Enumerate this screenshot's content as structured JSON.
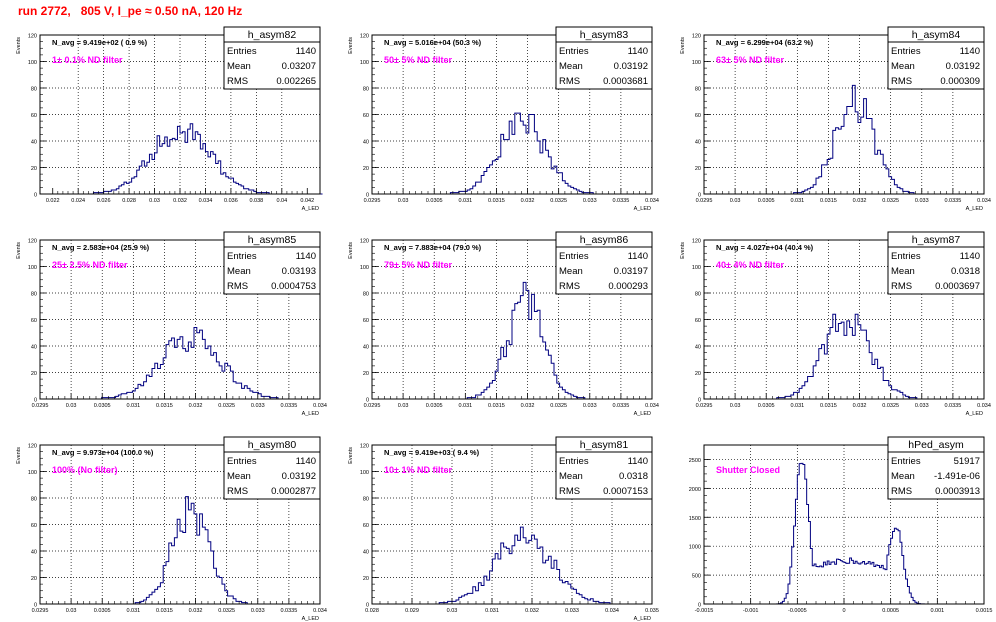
{
  "page": {
    "title": "run 2772,   805 V, I_pe ≈ 0.50 nA, 120 Hz"
  },
  "colors": {
    "histogram": "#000080",
    "annotation": "#ff00ff",
    "title": "#ff0000",
    "grid": "#000000",
    "text": "#000000"
  },
  "chart_data": [
    {
      "type": "histogram",
      "stats": {
        "name": "h_asym82",
        "entries": "1140",
        "mean": "0.03207",
        "rms": "0.002265"
      },
      "n_avg_text": "N_avg = 9.419e+02 ( 0.9 %)",
      "filter_text": "1± 0.1% ND filter",
      "ylabel": "Events",
      "xlabel": "A_LED",
      "xlim": [
        0.021,
        0.043
      ],
      "ylim": [
        0,
        120
      ],
      "yticks": [
        "0",
        "20",
        "40",
        "60",
        "80",
        "100",
        "120"
      ],
      "xticks": [
        "0.022",
        "0.024",
        "0.026",
        "0.028",
        "0.03",
        "0.032",
        "0.034",
        "0.036",
        "0.038",
        "0.04",
        "0.042"
      ],
      "xtick_values": [
        0.022,
        0.024,
        0.026,
        0.028,
        0.03,
        0.032,
        0.034,
        0.036,
        0.038,
        0.04,
        0.042
      ],
      "profile": {
        "mu": 0.03207,
        "sigma": 0.002265,
        "peak": 50,
        "bin_width": 0.0002
      }
    },
    {
      "type": "histogram",
      "stats": {
        "name": "h_asym83",
        "entries": "1140",
        "mean": "0.03192",
        "rms": "0.0003681"
      },
      "n_avg_text": "N_avg = 5.016e+04 (50.3 %)",
      "filter_text": "50± 5% ND filter",
      "ylabel": "Events",
      "xlabel": "A_LED",
      "xlim": [
        0.0295,
        0.034
      ],
      "ylim": [
        0,
        120
      ],
      "yticks": [
        "0",
        "20",
        "40",
        "60",
        "80",
        "100",
        "120"
      ],
      "xticks": [
        "0.0295",
        "0.03",
        "0.0305",
        "0.031",
        "0.0315",
        "0.032",
        "0.0325",
        "0.033",
        "0.0335",
        "0.034"
      ],
      "xtick_values": [
        0.0295,
        0.03,
        0.0305,
        0.031,
        0.0315,
        0.032,
        0.0325,
        0.033,
        0.0335,
        0.034
      ],
      "profile": {
        "mu": 0.03192,
        "sigma": 0.0003681,
        "peak": 55,
        "bin_width": 4.5e-05
      }
    },
    {
      "type": "histogram",
      "stats": {
        "name": "h_asym84",
        "entries": "1140",
        "mean": "0.03192",
        "rms": "0.000309"
      },
      "n_avg_text": "N_avg = 6.299e+04 (63.2 %)",
      "filter_text": "63± 5% ND filter",
      "ylabel": "Events",
      "xlabel": "A_LED",
      "xlim": [
        0.0295,
        0.034
      ],
      "ylim": [
        0,
        120
      ],
      "yticks": [
        "0",
        "20",
        "40",
        "60",
        "80",
        "100",
        "120"
      ],
      "xticks": [
        "0.0295",
        "0.03",
        "0.0305",
        "0.031",
        "0.0315",
        "0.032",
        "0.0325",
        "0.033",
        "0.0335",
        "0.034"
      ],
      "xtick_values": [
        0.0295,
        0.03,
        0.0305,
        0.031,
        0.0315,
        0.032,
        0.0325,
        0.033,
        0.0335,
        0.034
      ],
      "profile": {
        "mu": 0.03192,
        "sigma": 0.000309,
        "peak": 70,
        "bin_width": 4.5e-05
      }
    },
    {
      "type": "histogram",
      "stats": {
        "name": "h_asym85",
        "entries": "1140",
        "mean": "0.03193",
        "rms": "0.0004753"
      },
      "n_avg_text": "N_avg = 2.583e+04 (25.9 %)",
      "filter_text": "25± 2.5% ND filter",
      "ylabel": "Events",
      "xlabel": "A_LED",
      "xlim": [
        0.0295,
        0.034
      ],
      "ylim": [
        0,
        120
      ],
      "yticks": [
        "0",
        "20",
        "40",
        "60",
        "80",
        "100",
        "120"
      ],
      "xticks": [
        "0.0295",
        "0.03",
        "0.0305",
        "0.031",
        "0.0315",
        "0.032",
        "0.0325",
        "0.033",
        "0.0335",
        "0.034"
      ],
      "xtick_values": [
        0.0295,
        0.03,
        0.0305,
        0.031,
        0.0315,
        0.032,
        0.0325,
        0.033,
        0.0335,
        0.034
      ],
      "profile": {
        "mu": 0.03193,
        "sigma": 0.0004753,
        "peak": 47,
        "bin_width": 4.5e-05
      }
    },
    {
      "type": "histogram",
      "stats": {
        "name": "h_asym86",
        "entries": "1140",
        "mean": "0.03197",
        "rms": "0.000293"
      },
      "n_avg_text": "N_avg = 7.883e+04 (79.0 %)",
      "filter_text": "79± 5% ND filter",
      "ylabel": "Events",
      "xlabel": "A_LED",
      "xlim": [
        0.0295,
        0.034
      ],
      "ylim": [
        0,
        120
      ],
      "yticks": [
        "0",
        "20",
        "40",
        "60",
        "80",
        "100",
        "120"
      ],
      "xticks": [
        "0.0295",
        "0.03",
        "0.0305",
        "0.031",
        "0.0315",
        "0.032",
        "0.0325",
        "0.033",
        "0.0335",
        "0.034"
      ],
      "xtick_values": [
        0.0295,
        0.03,
        0.0305,
        0.031,
        0.0315,
        0.032,
        0.0325,
        0.033,
        0.0335,
        0.034
      ],
      "profile": {
        "mu": 0.03197,
        "sigma": 0.000293,
        "peak": 74,
        "bin_width": 4.5e-05
      }
    },
    {
      "type": "histogram",
      "stats": {
        "name": "h_asym87",
        "entries": "1140",
        "mean": "0.0318",
        "rms": "0.0003697"
      },
      "n_avg_text": "N_avg = 4.027e+04 (40.4 %)",
      "filter_text": "40± 4% ND filter",
      "ylabel": "Events",
      "xlabel": "A_LED",
      "xlim": [
        0.0295,
        0.034
      ],
      "ylim": [
        0,
        120
      ],
      "yticks": [
        "0",
        "20",
        "40",
        "60",
        "80",
        "100",
        "120"
      ],
      "xticks": [
        "0.0295",
        "0.03",
        "0.0305",
        "0.031",
        "0.0315",
        "0.032",
        "0.0325",
        "0.033",
        "0.0335",
        "0.034"
      ],
      "xtick_values": [
        0.0295,
        0.03,
        0.0305,
        0.031,
        0.0315,
        0.032,
        0.0325,
        0.033,
        0.0335,
        0.034
      ],
      "profile": {
        "mu": 0.0318,
        "sigma": 0.0003697,
        "peak": 62,
        "bin_width": 4.5e-05
      }
    },
    {
      "type": "histogram",
      "stats": {
        "name": "h_asym80",
        "entries": "1140",
        "mean": "0.03192",
        "rms": "0.0002877"
      },
      "n_avg_text": "N_avg = 9.973e+04 (100.0 %)",
      "filter_text": "100% (No filter)",
      "ylabel": "Events",
      "xlabel": "A_LED",
      "xlim": [
        0.0295,
        0.034
      ],
      "ylim": [
        0,
        120
      ],
      "yticks": [
        "0",
        "20",
        "40",
        "60",
        "80",
        "100",
        "120"
      ],
      "xticks": [
        "0.0295",
        "0.03",
        "0.0305",
        "0.031",
        "0.0315",
        "0.032",
        "0.0325",
        "0.033",
        "0.0335",
        "0.034"
      ],
      "xtick_values": [
        0.0295,
        0.03,
        0.0305,
        0.031,
        0.0315,
        0.032,
        0.0325,
        0.033,
        0.0335,
        0.034
      ],
      "profile": {
        "mu": 0.03192,
        "sigma": 0.0002877,
        "peak": 72,
        "bin_width": 4.5e-05
      }
    },
    {
      "type": "histogram",
      "stats": {
        "name": "h_asym81",
        "entries": "1140",
        "mean": "0.0318",
        "rms": "0.0007153"
      },
      "n_avg_text": "N_avg = 9.419e+03 ( 9.4 %)",
      "filter_text": "10± 1% ND filter",
      "ylabel": "Events",
      "xlabel": "A_LED",
      "xlim": [
        0.028,
        0.035
      ],
      "ylim": [
        0,
        120
      ],
      "yticks": [
        "0",
        "20",
        "40",
        "60",
        "80",
        "100",
        "120"
      ],
      "xticks": [
        "0.028",
        "0.029",
        "0.03",
        "0.031",
        "0.032",
        "0.033",
        "0.034",
        "0.035"
      ],
      "xtick_values": [
        0.028,
        0.029,
        0.03,
        0.031,
        0.032,
        0.033,
        0.034,
        0.035
      ],
      "profile": {
        "mu": 0.0318,
        "sigma": 0.0007153,
        "peak": 50,
        "bin_width": 7e-05
      }
    },
    {
      "type": "histogram",
      "stats": {
        "name": "hPed_asym",
        "entries": "51917",
        "mean": "-1.491e-06",
        "rms": "0.0003913"
      },
      "n_avg_text": "",
      "filter_text": "Shutter Closed",
      "ylabel": "",
      "xlabel": "",
      "xlim": [
        -0.0015,
        0.0015
      ],
      "ylim": [
        0,
        2750
      ],
      "yticks": [
        "0",
        "500",
        "1000",
        "1500",
        "2000",
        "2500"
      ],
      "ytick_values": [
        0,
        500,
        1000,
        1500,
        2000,
        2500
      ],
      "xticks": [
        "-0.0015",
        "-0.001",
        "-0.0005",
        "0",
        "0.0005",
        "0.001",
        "0.0015"
      ],
      "xtick_values": [
        -0.0015,
        -0.001,
        -0.0005,
        0,
        0.0005,
        0.001,
        0.0015
      ],
      "profile": {
        "bimodal": true,
        "peak1_x": -0.00045,
        "peak1_h": 2600,
        "peak1_w": 7e-05,
        "peak2_x": 0.00055,
        "peak2_h": 1350,
        "peak2_w": 8e-05,
        "valley": 650,
        "bin_width": 2e-05
      }
    }
  ]
}
